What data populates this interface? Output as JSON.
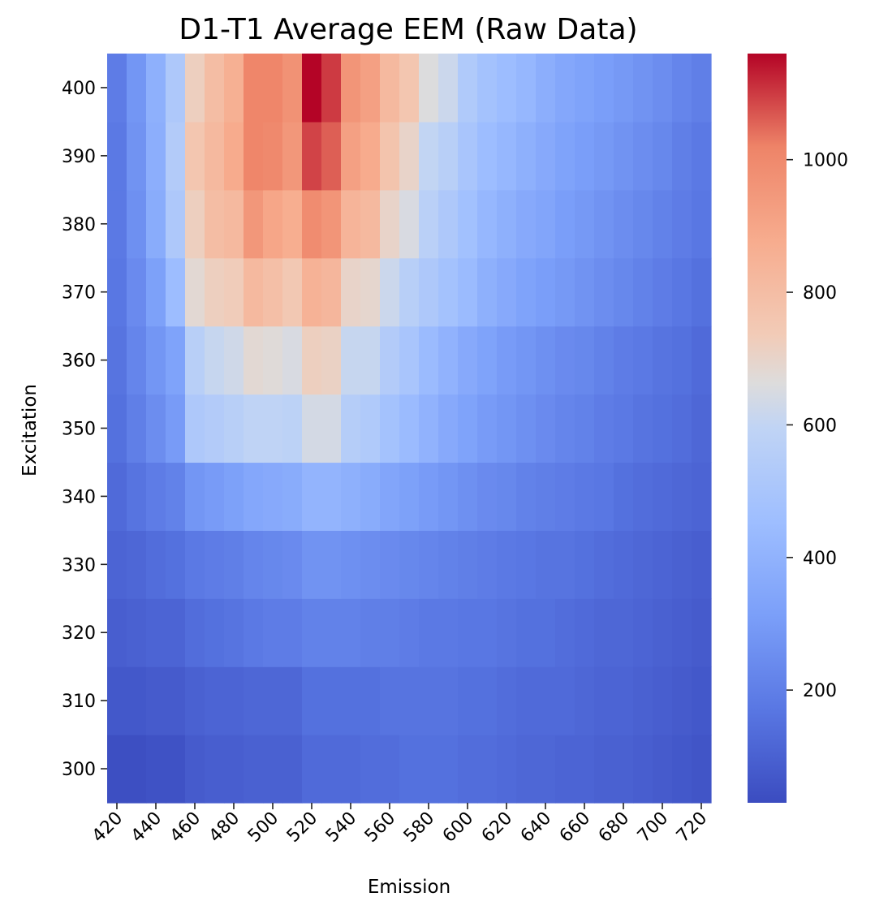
{
  "chart_data": {
    "type": "heatmap",
    "title": "D1-T1 Average EEM (Raw Data)",
    "xlabel": "Emission",
    "ylabel": "Excitation",
    "x": [
      420,
      430,
      440,
      450,
      460,
      470,
      480,
      490,
      500,
      510,
      520,
      530,
      540,
      550,
      560,
      570,
      580,
      590,
      600,
      610,
      620,
      630,
      640,
      650,
      660,
      670,
      680,
      690,
      700,
      710,
      720
    ],
    "x_tick_labels": [
      "420",
      "440",
      "460",
      "480",
      "500",
      "520",
      "540",
      "560",
      "580",
      "600",
      "620",
      "640",
      "660",
      "680",
      "700",
      "720"
    ],
    "y": [
      300,
      310,
      320,
      330,
      340,
      350,
      360,
      370,
      380,
      390,
      400
    ],
    "y_tick_labels": [
      "300",
      "310",
      "320",
      "330",
      "340",
      "350",
      "360",
      "370",
      "380",
      "390",
      "400"
    ],
    "colormap": "coolwarm",
    "vmin": 30,
    "vmax": 1160,
    "colorbar_ticks": [
      200,
      400,
      600,
      800,
      1000
    ],
    "colorbar_tick_labels": [
      "200",
      "400",
      "600",
      "800",
      "1000"
    ],
    "grid": false,
    "values": [
      [
        40,
        40,
        50,
        50,
        80,
        90,
        90,
        100,
        100,
        100,
        130,
        130,
        130,
        140,
        140,
        150,
        150,
        150,
        140,
        140,
        130,
        120,
        120,
        110,
        110,
        100,
        100,
        90,
        80,
        70,
        60
      ],
      [
        70,
        70,
        80,
        80,
        100,
        110,
        110,
        120,
        120,
        120,
        150,
        150,
        150,
        150,
        160,
        160,
        160,
        160,
        150,
        150,
        140,
        130,
        130,
        130,
        120,
        110,
        110,
        100,
        90,
        80,
        70
      ],
      [
        90,
        100,
        110,
        110,
        140,
        150,
        160,
        180,
        190,
        190,
        210,
        210,
        210,
        200,
        200,
        190,
        180,
        180,
        170,
        170,
        160,
        150,
        150,
        140,
        130,
        120,
        120,
        110,
        100,
        90,
        80
      ],
      [
        110,
        120,
        140,
        150,
        180,
        190,
        200,
        220,
        230,
        240,
        270,
        270,
        260,
        250,
        240,
        230,
        220,
        210,
        200,
        190,
        180,
        170,
        160,
        160,
        150,
        140,
        130,
        120,
        110,
        100,
        90
      ],
      [
        130,
        160,
        190,
        210,
        280,
        300,
        320,
        350,
        360,
        370,
        410,
        410,
        390,
        370,
        340,
        320,
        300,
        280,
        260,
        240,
        230,
        210,
        200,
        190,
        180,
        170,
        150,
        140,
        130,
        120,
        110
      ],
      [
        150,
        200,
        250,
        300,
        520,
        540,
        560,
        590,
        590,
        580,
        640,
        640,
        550,
        530,
        480,
        440,
        400,
        360,
        330,
        300,
        280,
        260,
        240,
        220,
        210,
        190,
        180,
        160,
        150,
        140,
        120
      ],
      [
        160,
        220,
        280,
        330,
        560,
        610,
        630,
        680,
        670,
        650,
        720,
        710,
        610,
        610,
        540,
        500,
        440,
        400,
        360,
        330,
        300,
        280,
        260,
        240,
        230,
        210,
        190,
        180,
        160,
        150,
        130
      ],
      [
        170,
        240,
        320,
        450,
        680,
        720,
        730,
        820,
        790,
        750,
        850,
        830,
        700,
        690,
        620,
        560,
        520,
        480,
        440,
        390,
        360,
        330,
        310,
        290,
        270,
        250,
        230,
        210,
        190,
        170,
        150
      ],
      [
        180,
        260,
        370,
        520,
        720,
        800,
        820,
        950,
        900,
        870,
        990,
        960,
        840,
        820,
        700,
        650,
        570,
        520,
        470,
        420,
        390,
        360,
        340,
        310,
        290,
        270,
        250,
        230,
        210,
        190,
        170
      ],
      [
        180,
        270,
        380,
        540,
        760,
        820,
        880,
        1010,
        1000,
        950,
        1090,
        1060,
        920,
        880,
        770,
        700,
        600,
        560,
        500,
        450,
        420,
        390,
        360,
        330,
        310,
        290,
        270,
        250,
        230,
        200,
        180
      ],
      [
        190,
        280,
        390,
        520,
        720,
        800,
        860,
        1010,
        1010,
        970,
        1160,
        1100,
        960,
        920,
        820,
        760,
        660,
        620,
        530,
        480,
        450,
        420,
        380,
        350,
        330,
        310,
        290,
        270,
        250,
        220,
        200
      ]
    ]
  }
}
